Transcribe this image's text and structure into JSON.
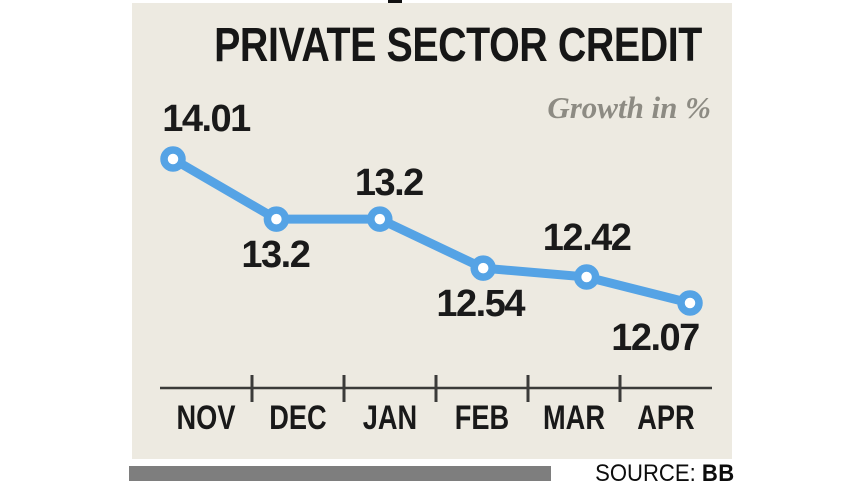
{
  "title": "PRIVATE SECTOR CREDIT",
  "subtitle": "Growth in %",
  "source": {
    "label": "SOURCE:",
    "value": "BB"
  },
  "colors": {
    "background": "#FFFFFF",
    "panel": "#EDEAE1",
    "line": "#55A3E5",
    "marker_core": "#FFFFFF",
    "title": "#161616",
    "subtitle": "#8D8B83",
    "axis": "#3B3B39",
    "value_label": "#1A1A1A",
    "month_label": "#191919",
    "source_bar": "#7E7E7E"
  },
  "chart_data": {
    "type": "line",
    "title": "PRIVATE SECTOR CREDIT",
    "subtitle": "Growth in %",
    "categories": [
      "NOV",
      "DEC",
      "JAN",
      "FEB",
      "MAR",
      "APR"
    ],
    "values": [
      14.01,
      13.2,
      13.2,
      12.54,
      12.42,
      12.07
    ],
    "point_labels": [
      "14.01",
      "13.2",
      "13.2",
      "12.54",
      "12.42",
      "12.07"
    ],
    "label_position": [
      "above",
      "below",
      "above",
      "below",
      "above",
      "below"
    ],
    "ylabel": "Growth in %",
    "ylim": [
      11.9,
      14.2
    ],
    "grid": false,
    "legend": "none",
    "source": "SOURCE: BB"
  }
}
